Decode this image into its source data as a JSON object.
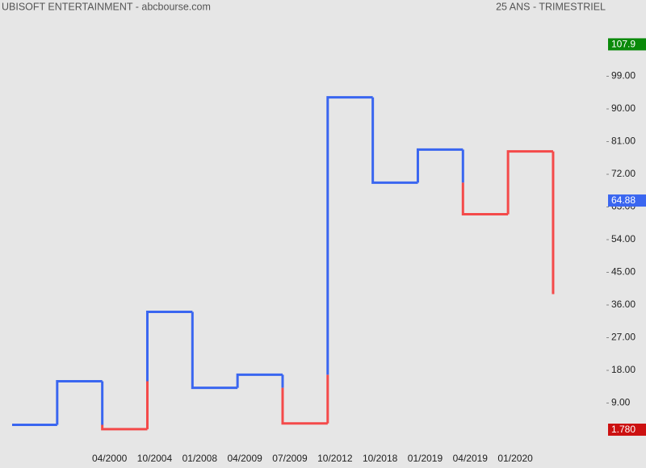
{
  "chart_data": {
    "type": "kagi",
    "title": "UBISOFT ENTERTAINMENT - abcbourse.com",
    "subtitle": "25 ANS - TRIMESTRIEL",
    "categories": [
      null,
      null,
      "04/2000",
      "10/2004",
      "01/2008",
      "04/2009",
      "07/2009",
      "10/2012",
      "10/2018",
      "01/2019",
      "04/2019",
      "01/2020",
      null
    ],
    "values": [
      3.0,
      15.0,
      1.8,
      34.1,
      13.2,
      16.8,
      3.4,
      93.2,
      69.7,
      78.8,
      61.0,
      78.3,
      39.0
    ],
    "up_color": "#3a66f0",
    "down_color": "#f44a4a",
    "ylim": [
      -4,
      120
    ],
    "yticks": [
      {
        "value": 9,
        "label": "9.00"
      },
      {
        "value": 18,
        "label": "18.00"
      },
      {
        "value": 27,
        "label": "27.00"
      },
      {
        "value": 36,
        "label": "36.00"
      },
      {
        "value": 45,
        "label": "45.00"
      },
      {
        "value": 54,
        "label": "54.00"
      },
      {
        "value": 63,
        "label": "63.00"
      },
      {
        "value": 72,
        "label": "72.00"
      },
      {
        "value": 81,
        "label": "81.00"
      },
      {
        "value": 90,
        "label": "90.00"
      },
      {
        "value": 99,
        "label": "99.00"
      }
    ],
    "price_labels": [
      {
        "value": 107.9,
        "color": "#0a8a0a"
      },
      {
        "value": 64.88,
        "color": "#3a66f0"
      },
      {
        "value": {
          "value": 1.78,
          "label": "1.780"
        },
        "color": "#cc1111"
      }
    ]
  }
}
